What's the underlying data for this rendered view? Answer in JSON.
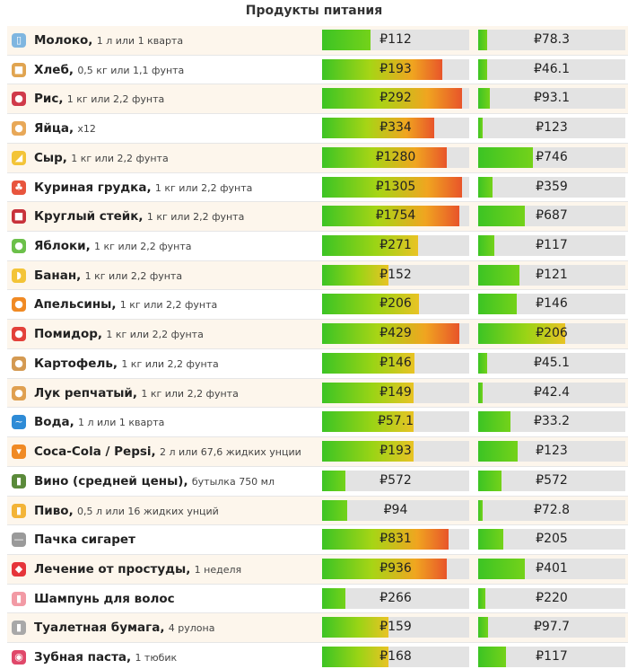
{
  "title": "Продукты питания",
  "items": [
    {
      "name": "Молоко,",
      "unit": "1 л или 1 кварта",
      "icon": "milk-icon",
      "glyph": "▯",
      "color": "#7fb6e0",
      "v1": "₽112",
      "f1": 0.33,
      "v2": "₽78.3",
      "f2": 0.06
    },
    {
      "name": "Хлеб,",
      "unit": "0,5 кг или 1,1 фунта",
      "icon": "bread-icon",
      "glyph": "■",
      "color": "#e0a450",
      "v1": "₽193",
      "f1": 0.82,
      "v2": "₽46.1",
      "f2": 0.06
    },
    {
      "name": "Рис,",
      "unit": "1 кг или 2,2 фунта",
      "icon": "rice-icon",
      "glyph": "●",
      "color": "#d03a4a",
      "v1": "₽292",
      "f1": 0.95,
      "v2": "₽93.1",
      "f2": 0.08
    },
    {
      "name": "Яйца,",
      "unit": "x12",
      "icon": "egg-icon",
      "glyph": "●",
      "color": "#e8a858",
      "v1": "₽334",
      "f1": 0.76,
      "v2": "₽123",
      "f2": 0.03
    },
    {
      "name": "Сыр,",
      "unit": "1 кг или 2,2 фунта",
      "icon": "cheese-icon",
      "glyph": "◢",
      "color": "#f3c437",
      "v1": "₽1280",
      "f1": 0.85,
      "v2": "₽746",
      "f2": 0.37
    },
    {
      "name": "Куриная грудка,",
      "unit": "1 кг или 2,2 фунта",
      "icon": "chicken-icon",
      "glyph": "♣",
      "color": "#e8553e",
      "v1": "₽1305",
      "f1": 0.95,
      "v2": "₽359",
      "f2": 0.1
    },
    {
      "name": "Круглый стейк,",
      "unit": "1 кг или 2,2 фунта",
      "icon": "steak-icon",
      "glyph": "■",
      "color": "#c8323b",
      "v1": "₽1754",
      "f1": 0.93,
      "v2": "₽687",
      "f2": 0.32
    },
    {
      "name": "Яблоки,",
      "unit": "1 кг или 2,2 фунта",
      "icon": "apple-icon",
      "glyph": "●",
      "color": "#6cc04a",
      "v1": "₽271",
      "f1": 0.65,
      "v2": "₽117",
      "f2": 0.11
    },
    {
      "name": "Банан,",
      "unit": "1 кг или 2,2 фунта",
      "icon": "banana-icon",
      "glyph": "◗",
      "color": "#f3c437",
      "v1": "₽152",
      "f1": 0.45,
      "v2": "₽121",
      "f2": 0.28
    },
    {
      "name": "Апельсины,",
      "unit": "1 кг или 2,2 фунта",
      "icon": "orange-icon",
      "glyph": "●",
      "color": "#f08a24",
      "v1": "₽206",
      "f1": 0.66,
      "v2": "₽146",
      "f2": 0.26
    },
    {
      "name": "Помидор,",
      "unit": "1 кг или 2,2 фунта",
      "icon": "tomato-icon",
      "glyph": "●",
      "color": "#e3413a",
      "v1": "₽429",
      "f1": 0.93,
      "v2": "₽206",
      "f2": 0.59
    },
    {
      "name": "Картофель,",
      "unit": "1 кг или 2,2 фунта",
      "icon": "potato-icon",
      "glyph": "●",
      "color": "#d49a52",
      "v1": "₽146",
      "f1": 0.63,
      "v2": "₽45.1",
      "f2": 0.06
    },
    {
      "name": "Лук репчатый,",
      "unit": "1 кг или 2,2 фунта",
      "icon": "onion-icon",
      "glyph": "●",
      "color": "#e0a050",
      "v1": "₽149",
      "f1": 0.62,
      "v2": "₽42.4",
      "f2": 0.03
    },
    {
      "name": "Вода,",
      "unit": "1 л или 1 кварта",
      "icon": "water-wave-icon",
      "glyph": "~",
      "color": "#2e8bd6",
      "v1": "₽57.1",
      "f1": 0.62,
      "v2": "₽33.2",
      "f2": 0.22
    },
    {
      "name": "Coca-Cola / Pepsi,",
      "unit": "2 л или 67,6 жидких унции",
      "icon": "cocktail-icon",
      "glyph": "▾",
      "color": "#f08a24",
      "v1": "₽193",
      "f1": 0.62,
      "v2": "₽123",
      "f2": 0.27
    },
    {
      "name": "Вино (средней цены),",
      "unit": "бутылка 750 мл",
      "icon": "wine-bottle-icon",
      "glyph": "▮",
      "color": "#5a8a3a",
      "v1": "₽572",
      "f1": 0.16,
      "v2": "₽572",
      "f2": 0.16
    },
    {
      "name": "Пиво,",
      "unit": "0,5 л или 16 жидких унций",
      "icon": "beer-icon",
      "glyph": "▮",
      "color": "#f3b437",
      "v1": "₽94",
      "f1": 0.17,
      "v2": "₽72.8",
      "f2": 0.03
    },
    {
      "name": "Пачка сигарет",
      "unit": "",
      "icon": "cigarette-icon",
      "glyph": "—",
      "color": "#9a9a9a",
      "v1": "₽831",
      "f1": 0.86,
      "v2": "₽205",
      "f2": 0.17
    },
    {
      "name": "Лечение от простуды,",
      "unit": "1 неделя",
      "icon": "pill-icon",
      "glyph": "◆",
      "color": "#e6353a",
      "v1": "₽936",
      "f1": 0.85,
      "v2": "₽401",
      "f2": 0.32
    },
    {
      "name": "Шампунь для волос",
      "unit": "",
      "icon": "shampoo-icon",
      "glyph": "▮",
      "color": "#f29aa5",
      "v1": "₽266",
      "f1": 0.16,
      "v2": "₽220",
      "f2": 0.05
    },
    {
      "name": "Туалетная бумага,",
      "unit": "4 рулона",
      "icon": "toilet-paper-icon",
      "glyph": "▮",
      "color": "#a8a8a8",
      "v1": "₽159",
      "f1": 0.45,
      "v2": "₽97.7",
      "f2": 0.07
    },
    {
      "name": "Зубная паста,",
      "unit": "1 тюбик",
      "icon": "lips-icon",
      "glyph": "◉",
      "color": "#e0486a",
      "v1": "₽168",
      "f1": 0.45,
      "v2": "₽117",
      "f2": 0.19
    }
  ]
}
